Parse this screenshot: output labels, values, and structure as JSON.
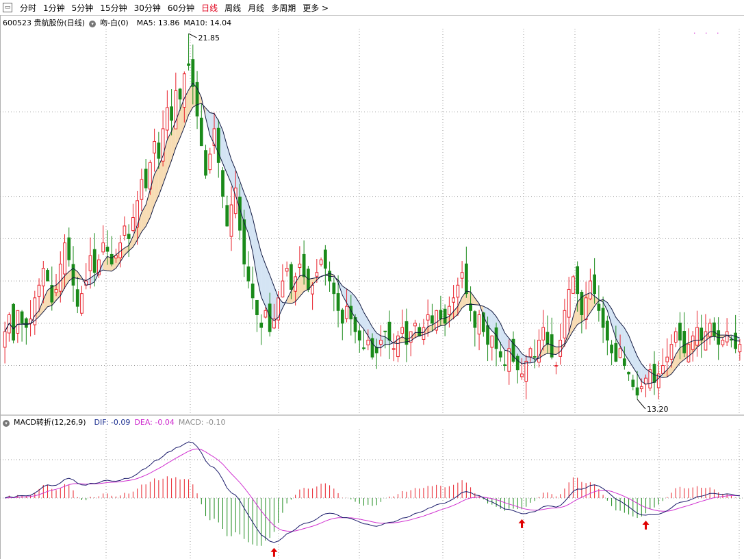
{
  "toolbar": {
    "icon": "window-restore-icon",
    "periods": [
      "分时",
      "1分钟",
      "5分钟",
      "15分钟",
      "30分钟",
      "60分钟",
      "日线",
      "周线",
      "月线",
      "多周期",
      "更多 >"
    ],
    "active_period": "日线"
  },
  "price_panel": {
    "stock_title": "600523 贵航股份(日线)",
    "indicator_name": "吻-白(0)",
    "ma5": "MA5: 13.86",
    "ma10": "MA10: 14.04",
    "extra_dots": "· · ·",
    "high_label": "21.85",
    "low_label": "13.20"
  },
  "macd_panel": {
    "indicator_name": "MACD转折(12,26,9)",
    "dif": "DIF: -0.09",
    "dea": "DEA: -0.04",
    "macd": "MACD: -0.10"
  },
  "colors": {
    "up": "#e8202a",
    "down": "#1a8a1a",
    "ma_line": "#101840",
    "fill_warm": "#f7dcb4",
    "fill_cool": "#d4e4f4",
    "dif_line": "#1a1a6a",
    "dea_line": "#d030d0",
    "signal_arrow": "#e00000"
  },
  "chart_data": {
    "type": "candlestick",
    "price_range": [
      13.2,
      21.85
    ],
    "high": 21.85,
    "low": 13.2,
    "ma_last": {
      "MA5": 13.86,
      "MA10": 14.04
    },
    "macd_last": {
      "DIF": -0.09,
      "DEA": -0.04,
      "MACD": -0.1
    },
    "price_grid_levels": [
      20.0,
      18.0,
      17.0,
      16.0,
      15.0,
      14.0
    ],
    "signals": [
      "buy",
      "buy",
      "buy"
    ],
    "close": [
      14.8,
      15.2,
      14.6,
      15.3,
      15.0,
      14.9,
      15.1,
      15.6,
      15.9,
      16.3,
      16.0,
      15.5,
      15.8,
      16.4,
      16.9,
      16.5,
      15.9,
      15.4,
      15.7,
      16.0,
      16.6,
      16.2,
      16.5,
      16.9,
      16.7,
      16.4,
      16.6,
      16.9,
      17.3,
      17.0,
      17.5,
      17.9,
      18.4,
      18.2,
      18.8,
      19.3,
      18.9,
      19.6,
      20.1,
      19.8,
      20.5,
      20.3,
      20.9,
      21.1,
      20.6,
      19.9,
      19.2,
      18.5,
      19.0,
      19.6,
      18.8,
      18.0,
      17.3,
      17.8,
      18.2,
      17.2,
      16.4,
      16.0,
      15.6,
      15.2,
      14.9,
      15.3,
      14.8,
      15.1,
      15.6,
      16.0,
      16.3,
      15.8,
      16.1,
      16.4,
      16.1,
      15.8,
      15.9,
      16.2,
      16.5,
      16.3,
      16.0,
      15.7,
      15.3,
      15.0,
      15.4,
      15.1,
      14.8,
      14.6,
      14.4,
      14.6,
      14.2,
      14.3,
      14.6,
      14.8,
      14.6,
      14.4,
      14.7,
      14.9,
      14.5,
      14.8,
      15.0,
      14.7,
      14.9,
      15.2,
      15.0,
      15.3,
      15.1,
      15.0,
      15.4,
      15.6,
      15.9,
      16.2,
      15.7,
      15.3,
      14.9,
      15.2,
      14.8,
      14.5,
      14.7,
      14.4,
      14.2,
      14.0,
      14.4,
      14.1,
      13.9,
      13.8,
      14.1,
      14.4,
      14.2,
      14.6,
      14.9,
      14.5,
      14.2,
      14.0,
      14.6,
      15.3,
      15.8,
      16.1,
      15.7,
      15.2,
      15.6,
      16.0,
      15.7,
      15.3,
      14.9,
      14.6,
      14.3,
      14.1,
      14.4,
      14.0,
      13.8,
      13.5,
      13.3,
      13.5,
      13.7,
      13.9,
      13.6,
      13.8,
      14.0,
      14.2,
      14.5,
      14.8,
      14.6,
      14.3,
      14.5,
      14.7,
      14.9,
      14.6,
      14.8,
      15.0,
      14.7,
      14.5,
      14.6,
      14.8,
      14.6,
      14.4,
      14.5
    ]
  }
}
